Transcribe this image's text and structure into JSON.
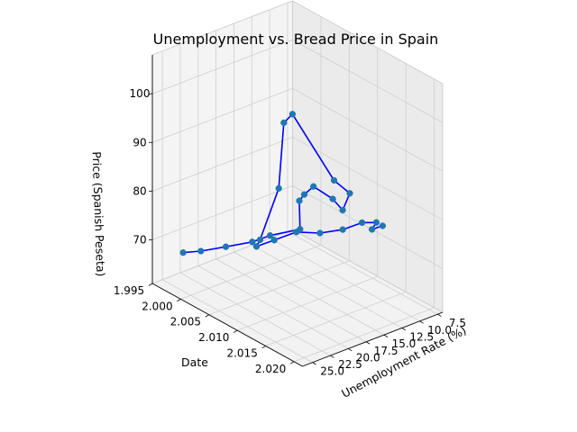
{
  "chart_data": {
    "type": "line",
    "projection": "3d",
    "title": "Unemployment vs. Bread Price in Spain",
    "xlabel": "Unemployment Rate (%)",
    "ylabel": "Date",
    "zlabel": "Price (Spanish Peseta)",
    "x_ticks": [
      "7.5",
      "10.0",
      "12.5",
      "15.0",
      "17.5",
      "20.0",
      "22.5",
      "25.0"
    ],
    "y_ticks": [
      "1.995",
      "2.000",
      "2.005",
      "2.010",
      "2.015",
      "2.020"
    ],
    "z_ticks": [
      "70",
      "80",
      "90",
      "100"
    ],
    "grid": true,
    "line_color": "#0000ff",
    "marker_color": "#1f77b4",
    "points": [
      {
        "x": 22.9,
        "y": 1.996,
        "z": 66
      },
      {
        "x": 21.2,
        "y": 1.997,
        "z": 66
      },
      {
        "x": 18.5,
        "y": 1.998,
        "z": 66
      },
      {
        "x": 15.6,
        "y": 1.999,
        "z": 66
      },
      {
        "x": 13.9,
        "y": 2.0,
        "z": 67
      },
      {
        "x": 10.5,
        "y": 2.001,
        "z": 67
      },
      {
        "x": 11.4,
        "y": 2.002,
        "z": 74
      },
      {
        "x": 11.5,
        "y": 2.003,
        "z": 76
      },
      {
        "x": 11.0,
        "y": 2.004,
        "z": 78
      },
      {
        "x": 9.1,
        "y": 2.005,
        "z": 75
      },
      {
        "x": 8.5,
        "y": 2.006,
        "z": 73
      },
      {
        "x": 8.3,
        "y": 2.007,
        "z": 77
      },
      {
        "x": 11.3,
        "y": 2.008,
        "z": 82
      },
      {
        "x": 17.9,
        "y": 2.009,
        "z": 100
      },
      {
        "x": 19.9,
        "y": 2.01,
        "z": 100
      },
      {
        "x": 21.4,
        "y": 2.011,
        "z": 88
      },
      {
        "x": 24.8,
        "y": 2.012,
        "z": 80
      },
      {
        "x": 26.1,
        "y": 2.013,
        "z": 80
      },
      {
        "x": 24.4,
        "y": 2.014,
        "z": 81
      },
      {
        "x": 22.1,
        "y": 2.015,
        "z": 82
      },
      {
        "x": 19.6,
        "y": 2.016,
        "z": 81
      },
      {
        "x": 17.2,
        "y": 2.017,
        "z": 81
      },
      {
        "x": 15.3,
        "y": 2.018,
        "z": 82
      },
      {
        "x": 14.1,
        "y": 2.019,
        "z": 82
      },
      {
        "x": 15.5,
        "y": 2.02,
        "z": 82
      },
      {
        "x": 14.8,
        "y": 2.021,
        "z": 83
      }
    ]
  }
}
